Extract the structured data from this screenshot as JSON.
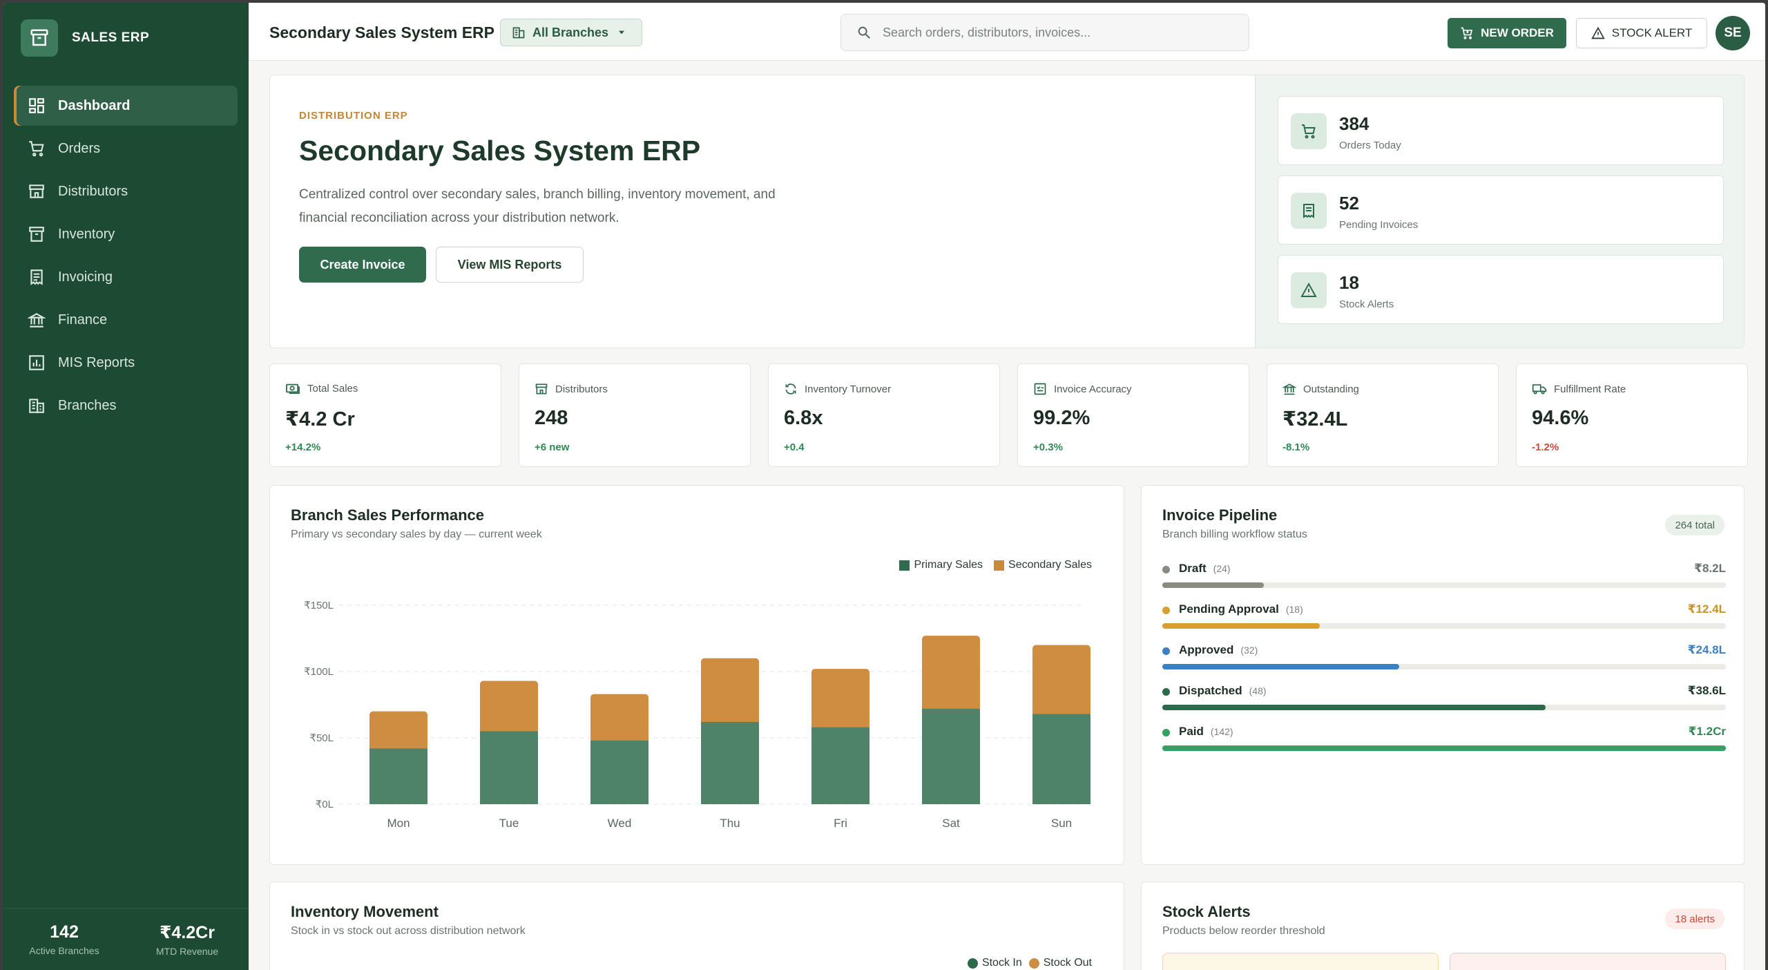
{
  "brand": {
    "name": "SALES ERP"
  },
  "sidebar": {
    "items": [
      {
        "label": "Dashboard",
        "icon": "dashboard-icon",
        "active": true
      },
      {
        "label": "Orders",
        "icon": "cart-icon"
      },
      {
        "label": "Distributors",
        "icon": "store-icon"
      },
      {
        "label": "Inventory",
        "icon": "archive-icon"
      },
      {
        "label": "Invoicing",
        "icon": "receipt-icon"
      },
      {
        "label": "Finance",
        "icon": "bank-icon"
      },
      {
        "label": "MIS Reports",
        "icon": "chart-icon"
      },
      {
        "label": "Branches",
        "icon": "building-icon"
      }
    ],
    "footer": [
      {
        "value": "142",
        "label": "Active Branches"
      },
      {
        "value": "₹4.2Cr",
        "label": "MTD Revenue"
      }
    ]
  },
  "header": {
    "title": "Secondary Sales System ERP",
    "branch": "All Branches",
    "search_placeholder": "Search orders, distributors, invoices...",
    "new_order": "NEW ORDER",
    "stock_alert": "STOCK ALERT",
    "avatar": "SE"
  },
  "hero": {
    "eyebrow": "DISTRIBUTION ERP",
    "title": "Secondary Sales System ERP",
    "description": "Centralized control over secondary sales, branch billing, inventory movement, and financial reconciliation across your distribution network.",
    "primary_btn": "Create Invoice",
    "secondary_btn": "View MIS Reports",
    "stats": [
      {
        "value": "384",
        "label": "Orders Today",
        "icon": "cart-icon"
      },
      {
        "value": "52",
        "label": "Pending Invoices",
        "icon": "receipt-icon"
      },
      {
        "value": "18",
        "label": "Stock Alerts",
        "icon": "warning-icon"
      }
    ]
  },
  "kpis": [
    {
      "label": "Total Sales",
      "value": "₹4.2 Cr",
      "delta": "+14.2%",
      "trend": "up",
      "icon": "cash-icon"
    },
    {
      "label": "Distributors",
      "value": "248",
      "delta": "+6 new",
      "trend": "up",
      "icon": "store-icon"
    },
    {
      "label": "Inventory Turnover",
      "value": "6.8x",
      "delta": "+0.4",
      "trend": "up",
      "icon": "refresh-icon"
    },
    {
      "label": "Invoice Accuracy",
      "value": "99.2%",
      "delta": "+0.3%",
      "trend": "up",
      "icon": "checklist-icon"
    },
    {
      "label": "Outstanding",
      "value": "₹32.4L",
      "delta": "-8.1%",
      "trend": "up",
      "icon": "bank-icon"
    },
    {
      "label": "Fulfillment Rate",
      "value": "94.6%",
      "delta": "-1.2%",
      "trend": "down",
      "icon": "truck-icon"
    }
  ],
  "branch_chart": {
    "title": "Branch Sales Performance",
    "subtitle": "Primary vs secondary sales by day — current week"
  },
  "chart_data": {
    "type": "bar",
    "stacked": true,
    "categories": [
      "Mon",
      "Tue",
      "Wed",
      "Thu",
      "Fri",
      "Sat",
      "Sun"
    ],
    "series": [
      {
        "name": "Primary Sales",
        "color": "#4f8369",
        "values": [
          42,
          55,
          48,
          62,
          58,
          72,
          68
        ]
      },
      {
        "name": "Secondary Sales",
        "color": "#cf8d42",
        "values": [
          28,
          38,
          35,
          48,
          44,
          55,
          52
        ]
      }
    ],
    "ylim": [
      0,
      150
    ],
    "yticks": [
      0,
      50,
      100,
      150
    ],
    "ytick_labels": [
      "₹0L",
      "₹50L",
      "₹100L",
      "₹150L"
    ],
    "legend": "top-right",
    "grid": true
  },
  "pipeline": {
    "title": "Invoice Pipeline",
    "subtitle": "Branch billing workflow status",
    "badge": "264 total",
    "stages": [
      {
        "name": "Draft",
        "count": "(24)",
        "amount": "₹8.2L",
        "color": "#8a8a80",
        "amount_color": "#6a746e",
        "fill": 0.18
      },
      {
        "name": "Pending Approval",
        "count": "(18)",
        "amount": "₹12.4L",
        "color": "#d6a02c",
        "amount_color": "#c99320",
        "fill": 0.28
      },
      {
        "name": "Approved",
        "count": "(32)",
        "amount": "₹24.8L",
        "color": "#3b7fc4",
        "amount_color": "#3b7fc4",
        "fill": 0.42
      },
      {
        "name": "Dispatched",
        "count": "(48)",
        "amount": "₹38.6L",
        "color": "#2a6a4a",
        "amount_color": "#1e3a2b",
        "fill": 0.68
      },
      {
        "name": "Paid",
        "count": "(142)",
        "amount": "₹1.2Cr",
        "color": "#34a061",
        "amount_color": "#2e8a55",
        "fill": 1.0
      }
    ]
  },
  "inventory": {
    "title": "Inventory Movement",
    "subtitle": "Stock in vs stock out across distribution network",
    "legend": [
      {
        "name": "Stock In",
        "color": "#2a6a4a"
      },
      {
        "name": "Stock Out",
        "color": "#cf8d42"
      }
    ]
  },
  "stock_alerts": {
    "title": "Stock Alerts",
    "subtitle": "Products below reorder threshold",
    "badge": "18 alerts"
  }
}
